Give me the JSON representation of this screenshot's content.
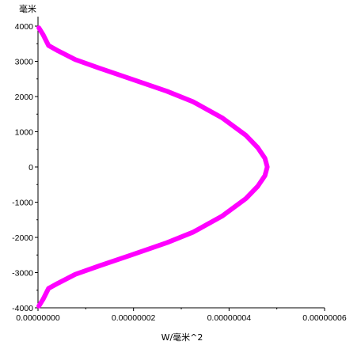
{
  "chart_data": {
    "type": "line",
    "title": "",
    "xlabel": "W/毫米^2",
    "ylabel": "毫米",
    "xlim": [
      0,
      6e-08
    ],
    "ylim": [
      -4000,
      4000
    ],
    "grid": false,
    "legend": "none",
    "x_tick_labels": [
      "0.00000000",
      "0.00000002",
      "0.00000004",
      "0.00000006"
    ],
    "x_tick_values": [
      0,
      2e-08,
      4e-08,
      6e-08
    ],
    "y_tick_labels": [
      "4000",
      "3000",
      "2000",
      "1000",
      "0",
      "-1000",
      "-2000",
      "-3000",
      "-4000"
    ],
    "y_tick_values": [
      4000,
      3000,
      2000,
      1000,
      0,
      -1000,
      -2000,
      -3000,
      -4000
    ],
    "series": [
      {
        "color": "#ff00ff",
        "x": [
          1.8e-10,
          1.1e-09,
          2.2e-09,
          4.2e-09,
          7.8e-09,
          1.3e-08,
          1.95e-08,
          2.7e-08,
          3.25e-08,
          3.85e-08,
          4.35e-08,
          4.6e-08,
          4.75e-08,
          4.8e-08,
          4.75e-08,
          4.6e-08,
          4.35e-08,
          3.85e-08,
          3.25e-08,
          2.7e-08,
          1.95e-08,
          1.3e-08,
          7.8e-09,
          4.2e-09,
          2.2e-09,
          1.1e-09,
          1.8e-10
        ],
        "y": [
          3950,
          3750,
          3450,
          3300,
          3050,
          2800,
          2500,
          2150,
          1850,
          1400,
          900,
          550,
          250,
          0,
          -250,
          -550,
          -900,
          -1400,
          -1850,
          -2150,
          -2500,
          -2800,
          -3050,
          -3300,
          -3450,
          -3750,
          -3950
        ]
      }
    ]
  }
}
